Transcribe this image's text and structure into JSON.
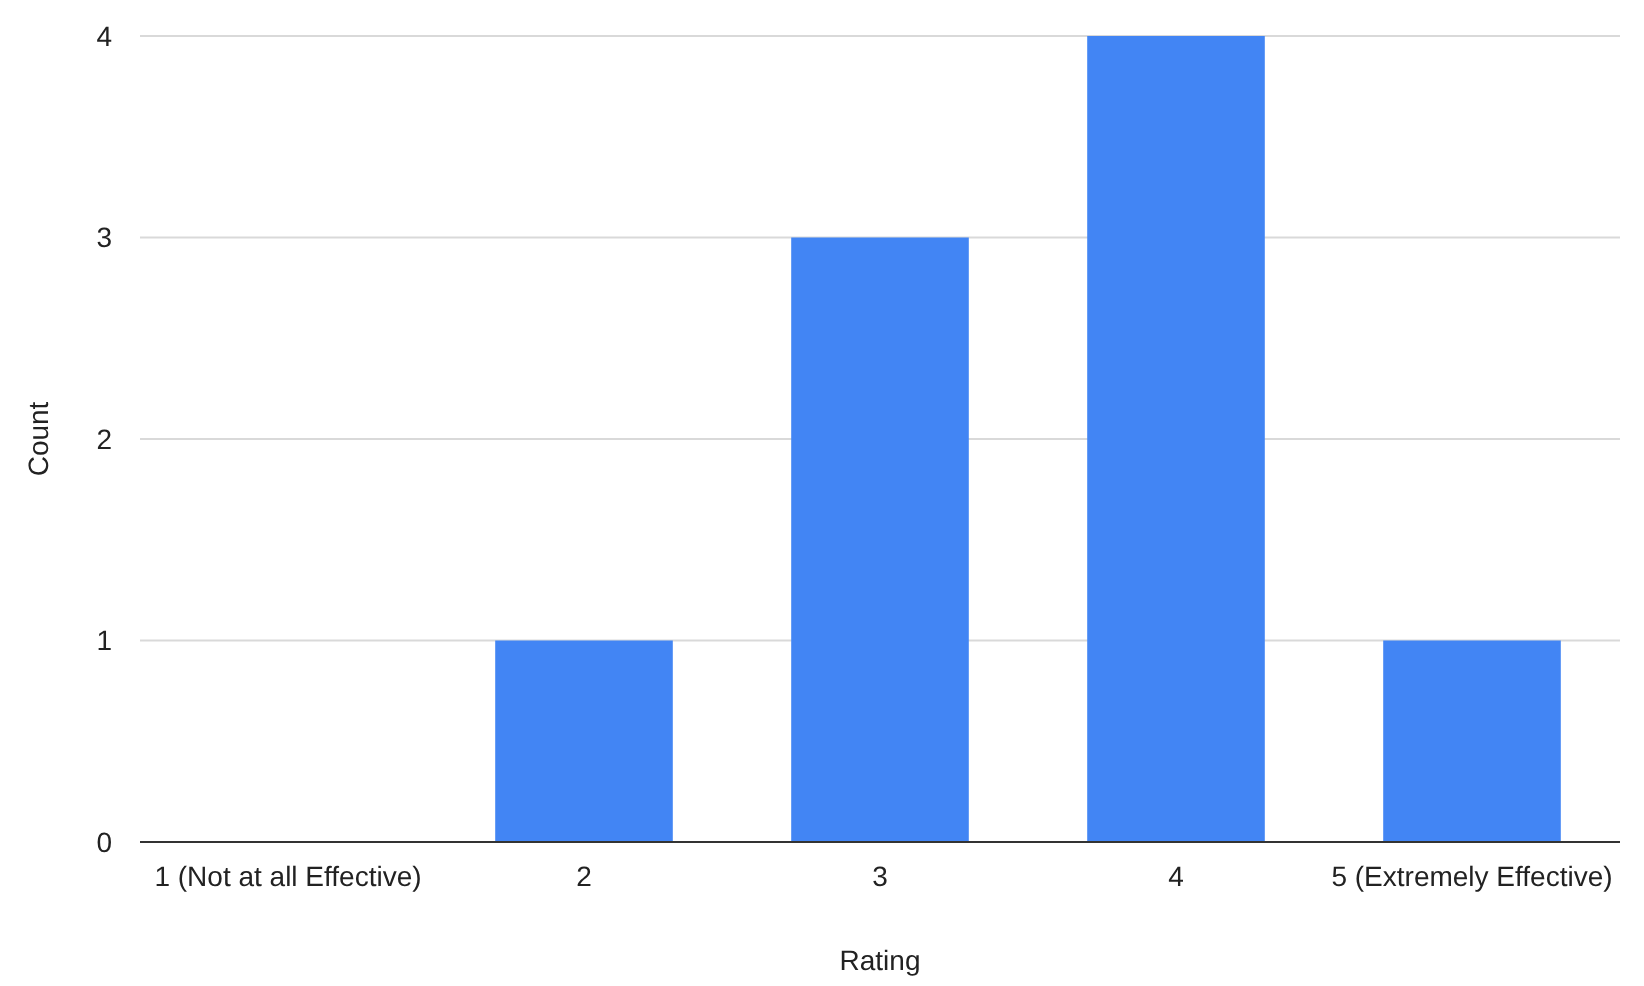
{
  "chart_data": {
    "type": "bar",
    "xlabel": "Rating",
    "ylabel": "Count",
    "categories": [
      "1 (Not at all Effective)",
      "2",
      "3",
      "4",
      "5 (Extremely Effective)"
    ],
    "values": [
      0,
      1,
      3,
      4,
      1
    ],
    "color": "#4285f4",
    "ylim": [
      0,
      4
    ],
    "yticks": [
      0,
      1,
      2,
      3,
      4
    ],
    "grid": "y"
  }
}
